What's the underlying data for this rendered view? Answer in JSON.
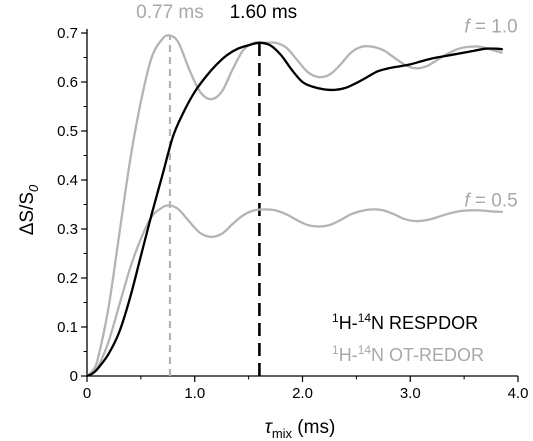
{
  "chart_data": {
    "type": "line",
    "xlabel": {
      "main": "τ",
      "sub": "mix",
      "unit": " (ms)"
    },
    "ylabel": {
      "main": "ΔS/S",
      "sub": "0"
    },
    "xlim": [
      0,
      4.0
    ],
    "ylim": [
      0,
      0.7
    ],
    "x_ticks": [
      0,
      1.0,
      2.0,
      3.0,
      4.0
    ],
    "x_tick_labels": [
      "0",
      "1.0",
      "2.0",
      "3.0",
      "4.0"
    ],
    "y_ticks": [
      0,
      0.1,
      0.2,
      0.3,
      0.4,
      0.5,
      0.6,
      0.7
    ],
    "y_tick_labels": [
      "0",
      "0.1",
      "0.2",
      "0.3",
      "0.4",
      "0.5",
      "0.6",
      "0.7"
    ],
    "grid": false,
    "series": [
      {
        "name": "OT-REDOR f = 1.0",
        "color": "#b4b4b4",
        "points": [
          [
            0,
            0
          ],
          [
            0.05,
            0.01
          ],
          [
            0.1,
            0.035
          ],
          [
            0.2,
            0.14
          ],
          [
            0.3,
            0.29
          ],
          [
            0.4,
            0.44
          ],
          [
            0.5,
            0.56
          ],
          [
            0.6,
            0.65
          ],
          [
            0.7,
            0.688
          ],
          [
            0.77,
            0.695
          ],
          [
            0.85,
            0.68
          ],
          [
            0.95,
            0.625
          ],
          [
            1.05,
            0.58
          ],
          [
            1.15,
            0.565
          ],
          [
            1.25,
            0.58
          ],
          [
            1.35,
            0.625
          ],
          [
            1.45,
            0.665
          ],
          [
            1.55,
            0.68
          ],
          [
            1.65,
            0.68
          ],
          [
            1.75,
            0.68
          ],
          [
            1.85,
            0.67
          ],
          [
            1.95,
            0.645
          ],
          [
            2.05,
            0.62
          ],
          [
            2.15,
            0.61
          ],
          [
            2.25,
            0.615
          ],
          [
            2.35,
            0.635
          ],
          [
            2.45,
            0.66
          ],
          [
            2.55,
            0.672
          ],
          [
            2.65,
            0.672
          ],
          [
            2.75,
            0.665
          ],
          [
            2.85,
            0.65
          ],
          [
            2.95,
            0.635
          ],
          [
            3.05,
            0.628
          ],
          [
            3.15,
            0.632
          ],
          [
            3.25,
            0.645
          ],
          [
            3.35,
            0.658
          ],
          [
            3.45,
            0.668
          ],
          [
            3.55,
            0.672
          ],
          [
            3.65,
            0.672
          ],
          [
            3.75,
            0.666
          ],
          [
            3.85,
            0.66
          ]
        ]
      },
      {
        "name": "OT-REDOR f = 0.5",
        "color": "#b4b4b4",
        "points": [
          [
            0,
            0
          ],
          [
            0.05,
            0.006
          ],
          [
            0.1,
            0.018
          ],
          [
            0.2,
            0.07
          ],
          [
            0.3,
            0.145
          ],
          [
            0.4,
            0.22
          ],
          [
            0.5,
            0.28
          ],
          [
            0.6,
            0.325
          ],
          [
            0.7,
            0.344
          ],
          [
            0.77,
            0.348
          ],
          [
            0.85,
            0.34
          ],
          [
            0.95,
            0.315
          ],
          [
            1.05,
            0.292
          ],
          [
            1.15,
            0.284
          ],
          [
            1.25,
            0.29
          ],
          [
            1.35,
            0.31
          ],
          [
            1.45,
            0.328
          ],
          [
            1.55,
            0.338
          ],
          [
            1.65,
            0.34
          ],
          [
            1.75,
            0.338
          ],
          [
            1.85,
            0.33
          ],
          [
            1.95,
            0.318
          ],
          [
            2.05,
            0.308
          ],
          [
            2.15,
            0.305
          ],
          [
            2.25,
            0.308
          ],
          [
            2.35,
            0.318
          ],
          [
            2.45,
            0.33
          ],
          [
            2.55,
            0.337
          ],
          [
            2.65,
            0.34
          ],
          [
            2.75,
            0.338
          ],
          [
            2.85,
            0.33
          ],
          [
            2.95,
            0.32
          ],
          [
            3.05,
            0.316
          ],
          [
            3.15,
            0.318
          ],
          [
            3.25,
            0.324
          ],
          [
            3.35,
            0.331
          ],
          [
            3.45,
            0.336
          ],
          [
            3.55,
            0.338
          ],
          [
            3.65,
            0.338
          ],
          [
            3.75,
            0.336
          ],
          [
            3.85,
            0.335
          ]
        ]
      },
      {
        "name": "RESPDOR",
        "color": "#000000",
        "points": [
          [
            0,
            0
          ],
          [
            0.05,
            0.005
          ],
          [
            0.1,
            0.015
          ],
          [
            0.2,
            0.045
          ],
          [
            0.3,
            0.09
          ],
          [
            0.4,
            0.16
          ],
          [
            0.5,
            0.245
          ],
          [
            0.6,
            0.33
          ],
          [
            0.7,
            0.41
          ],
          [
            0.8,
            0.49
          ],
          [
            0.9,
            0.54
          ],
          [
            1.0,
            0.58
          ],
          [
            1.1,
            0.61
          ],
          [
            1.2,
            0.635
          ],
          [
            1.3,
            0.655
          ],
          [
            1.4,
            0.668
          ],
          [
            1.5,
            0.675
          ],
          [
            1.6,
            0.68
          ],
          [
            1.7,
            0.675
          ],
          [
            1.8,
            0.655
          ],
          [
            1.9,
            0.625
          ],
          [
            2.0,
            0.6
          ],
          [
            2.1,
            0.59
          ],
          [
            2.2,
            0.585
          ],
          [
            2.3,
            0.584
          ],
          [
            2.4,
            0.588
          ],
          [
            2.5,
            0.598
          ],
          [
            2.6,
            0.61
          ],
          [
            2.7,
            0.622
          ],
          [
            2.8,
            0.628
          ],
          [
            2.9,
            0.632
          ],
          [
            3.0,
            0.636
          ],
          [
            3.1,
            0.642
          ],
          [
            3.2,
            0.648
          ],
          [
            3.3,
            0.652
          ],
          [
            3.4,
            0.656
          ],
          [
            3.5,
            0.66
          ],
          [
            3.6,
            0.664
          ],
          [
            3.7,
            0.668
          ],
          [
            3.8,
            0.668
          ],
          [
            3.85,
            0.667
          ]
        ]
      }
    ],
    "vlines": [
      {
        "x": 0.77,
        "y_top": 0.695,
        "color": "#b4b4b4",
        "label": "0.77 ms",
        "style": "short-dash"
      },
      {
        "x": 1.6,
        "y_top": 0.68,
        "color": "#000000",
        "label": "1.60 ms",
        "style": "long-dash"
      }
    ],
    "annotations": [
      {
        "text_italic": "f",
        "text": " = 1.0",
        "color": "#a8a8a8",
        "x": 3.75,
        "y": 0.705
      },
      {
        "text_italic": "f",
        "text": " = 0.5",
        "color": "#a8a8a8",
        "x": 3.75,
        "y": 0.35
      }
    ],
    "legend": [
      {
        "sup1": "1",
        "mid1": "H-",
        "sup2": "14",
        "rest": "N RESPDOR",
        "color": "#000000"
      },
      {
        "sup1": "1",
        "mid1": "H-",
        "sup2": "14",
        "rest": "N OT-REDOR",
        "color": "#a8a8a8"
      }
    ],
    "legend_position": "bottom-right"
  }
}
